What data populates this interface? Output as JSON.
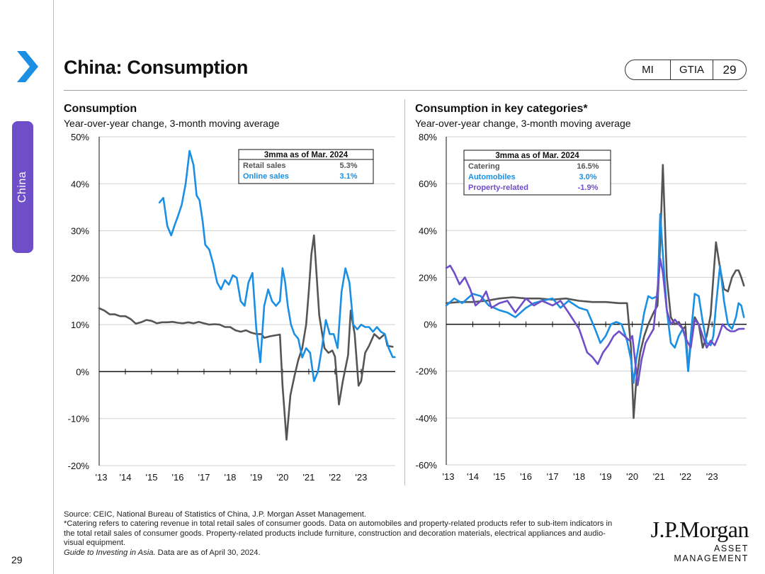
{
  "section_tab": "China",
  "page_number": "29",
  "title": "China: Consumption",
  "pill": {
    "mi": "MI",
    "gtia": "GTIA",
    "num": "29"
  },
  "colors": {
    "purple": "#6f4fc9",
    "blue": "#1a8fe3",
    "grey": "#555555",
    "accent_chevron": "#1a8fe3"
  },
  "footnotes": {
    "source": "Source: CEIC, National Bureau of Statistics of China, J.P. Morgan Asset Management.",
    "note": "*Catering refers to catering revenue in total retail sales of consumer goods. Data on automobiles and property-related products refer to sub-item indicators in the total retail sales of consumer goods. Property-related products include furniture, construction and decoration materials, electrical appliances and audio-visual equipment.",
    "guide_italic": "Guide to Investing in Asia.",
    "guide_rest": " Data are as of April 30, 2024."
  },
  "logo": {
    "main": "J.P.Morgan",
    "sub": "ASSET MANAGEMENT"
  },
  "chart_data": [
    {
      "type": "line",
      "title": "Consumption",
      "subtitle": "Year-over-year change, 3-month moving average",
      "ylim": [
        -20,
        50
      ],
      "yticks": [
        -20,
        -10,
        0,
        10,
        20,
        30,
        40,
        50
      ],
      "ytick_labels": [
        "-20%",
        "-10%",
        "0%",
        "10%",
        "20%",
        "30%",
        "40%",
        "50%"
      ],
      "xlim": [
        2013,
        2024.3
      ],
      "xticks": [
        2013,
        2014,
        2015,
        2016,
        2017,
        2018,
        2019,
        2020,
        2021,
        2022,
        2023
      ],
      "xtick_labels": [
        "'13",
        "'14",
        "'15",
        "'16",
        "'17",
        "'18",
        "'19",
        "'20",
        "'21",
        "'22",
        "'23"
      ],
      "legend": {
        "header": "3mma as of Mar. 2024",
        "rows": [
          {
            "label": "Retail sales",
            "value": "5.3%",
            "color": "#555555"
          },
          {
            "label": "Online sales",
            "value": "3.1%",
            "color": "#1a8fe3"
          }
        ]
      },
      "series": [
        {
          "name": "Retail sales",
          "color": "#555555",
          "x": [
            2013.0,
            2013.2,
            2013.4,
            2013.6,
            2013.8,
            2014.0,
            2014.2,
            2014.4,
            2014.6,
            2014.8,
            2015.0,
            2015.2,
            2015.4,
            2015.6,
            2015.8,
            2016.0,
            2016.2,
            2016.4,
            2016.6,
            2016.8,
            2017.0,
            2017.2,
            2017.4,
            2017.6,
            2017.8,
            2018.0,
            2018.2,
            2018.4,
            2018.6,
            2018.8,
            2019.0,
            2019.2,
            2019.3,
            2019.5,
            2019.7,
            2019.9,
            2020.0,
            2020.15,
            2020.3,
            2020.45,
            2020.6,
            2020.75,
            2020.9,
            2021.0,
            2021.1,
            2021.2,
            2021.4,
            2021.6,
            2021.75,
            2021.9,
            2022.0,
            2022.15,
            2022.3,
            2022.5,
            2022.6,
            2022.75,
            2022.9,
            2023.0,
            2023.15,
            2023.3,
            2023.5,
            2023.7,
            2023.9,
            2024.0,
            2024.2
          ],
          "y": [
            13.5,
            13.0,
            12.2,
            12.2,
            11.8,
            11.8,
            11.2,
            10.2,
            10.5,
            11.0,
            10.8,
            10.3,
            10.5,
            10.5,
            10.6,
            10.4,
            10.3,
            10.5,
            10.3,
            10.6,
            10.3,
            10.0,
            10.1,
            10.0,
            9.5,
            9.5,
            8.8,
            8.5,
            8.8,
            8.3,
            8.0,
            8.0,
            7.2,
            7.5,
            7.7,
            7.9,
            -3.0,
            -14.5,
            -5.0,
            -1.0,
            2.5,
            5.0,
            10.0,
            17.0,
            25.0,
            29.0,
            12.0,
            5.0,
            4.0,
            4.5,
            3.2,
            -7.0,
            -2.0,
            3.5,
            13.0,
            8.0,
            -3.0,
            -2.0,
            4.0,
            5.5,
            8.0,
            7.0,
            8.0,
            5.5,
            5.3
          ]
        },
        {
          "name": "Online sales",
          "color": "#1a8fe3",
          "x": [
            2015.3,
            2015.45,
            2015.6,
            2015.75,
            2015.9,
            2016.0,
            2016.15,
            2016.3,
            2016.45,
            2016.6,
            2016.72,
            2016.83,
            2016.95,
            2017.05,
            2017.2,
            2017.35,
            2017.5,
            2017.65,
            2017.8,
            2017.95,
            2018.1,
            2018.25,
            2018.4,
            2018.55,
            2018.7,
            2018.85,
            2019.0,
            2019.15,
            2019.3,
            2019.45,
            2019.6,
            2019.75,
            2019.9,
            2020.0,
            2020.1,
            2020.2,
            2020.32,
            2020.45,
            2020.6,
            2020.75,
            2020.9,
            2021.05,
            2021.2,
            2021.35,
            2021.5,
            2021.65,
            2021.8,
            2021.95,
            2022.1,
            2022.25,
            2022.4,
            2022.55,
            2022.7,
            2022.85,
            2023.0,
            2023.15,
            2023.3,
            2023.45,
            2023.6,
            2023.75,
            2023.9,
            2024.05,
            2024.2,
            2024.28
          ],
          "y": [
            36.0,
            37.0,
            31.0,
            29.0,
            31.5,
            33.0,
            35.5,
            40.0,
            47.0,
            44.0,
            37.5,
            36.5,
            32.0,
            27.0,
            26.0,
            23.0,
            19.0,
            17.5,
            19.5,
            18.5,
            20.5,
            20.0,
            15.0,
            14.0,
            19.0,
            21.0,
            9.0,
            2.0,
            14.0,
            17.5,
            15.0,
            14.0,
            15.0,
            22.0,
            19.0,
            14.0,
            10.0,
            8.0,
            7.0,
            3.0,
            5.0,
            4.0,
            -2.0,
            0.0,
            5.0,
            11.0,
            8.0,
            8.0,
            5.0,
            17.0,
            22.0,
            19.0,
            10.0,
            9.0,
            10.0,
            9.5,
            9.5,
            8.5,
            9.5,
            8.5,
            8.0,
            5.0,
            3.1,
            3.1
          ]
        }
      ]
    },
    {
      "type": "line",
      "title": "Consumption in key categories*",
      "subtitle": "Year-over-year change, 3-month moving average",
      "ylim": [
        -60,
        80
      ],
      "yticks": [
        -60,
        -40,
        -20,
        0,
        20,
        40,
        60,
        80
      ],
      "ytick_labels": [
        "-60%",
        "-40%",
        "-20%",
        "0%",
        "20%",
        "40%",
        "60%",
        "80%"
      ],
      "xlim": [
        2013,
        2024.3
      ],
      "xticks": [
        2013,
        2014,
        2015,
        2016,
        2017,
        2018,
        2019,
        2020,
        2021,
        2022,
        2023
      ],
      "xtick_labels": [
        "'13",
        "'14",
        "'15",
        "'16",
        "'17",
        "'18",
        "'19",
        "'20",
        "'21",
        "'22",
        "'23"
      ],
      "legend": {
        "header": "3mma as of Mar. 2024",
        "rows": [
          {
            "label": "Catering",
            "value": "16.5%",
            "color": "#555555"
          },
          {
            "label": "Automobiles",
            "value": "3.0%",
            "color": "#1a8fe3"
          },
          {
            "label": "Property-related",
            "value": "-1.9%",
            "color": "#6f4fc9"
          }
        ]
      },
      "series": [
        {
          "name": "Catering",
          "color": "#555555",
          "x": [
            2013.0,
            2013.5,
            2014.0,
            2014.5,
            2015.0,
            2015.5,
            2016.0,
            2016.5,
            2017.0,
            2017.5,
            2018.0,
            2018.5,
            2019.0,
            2019.5,
            2019.8,
            2019.95,
            2020.05,
            2020.15,
            2020.3,
            2020.45,
            2020.6,
            2020.8,
            2020.95,
            2021.05,
            2021.15,
            2021.3,
            2021.45,
            2021.6,
            2021.75,
            2021.9,
            2022.0,
            2022.1,
            2022.2,
            2022.35,
            2022.5,
            2022.65,
            2022.8,
            2022.95,
            2023.05,
            2023.15,
            2023.3,
            2023.45,
            2023.6,
            2023.75,
            2023.9,
            2024.0,
            2024.1,
            2024.2
          ],
          "y": [
            9,
            9.5,
            9.5,
            10,
            11,
            11.5,
            11,
            11,
            10.5,
            11,
            10,
            9.5,
            9.5,
            9,
            9,
            -10,
            -40,
            -24,
            -12,
            -5,
            0,
            5,
            8,
            35,
            68,
            20,
            3,
            0,
            1,
            -2,
            -1,
            -20,
            -8,
            3,
            0,
            -10,
            -5,
            4,
            20,
            35,
            24,
            15,
            14,
            20,
            23,
            23,
            20,
            16.5
          ]
        },
        {
          "name": "Automobiles",
          "color": "#1a8fe3",
          "x": [
            2013.0,
            2013.3,
            2013.6,
            2014.0,
            2014.3,
            2014.6,
            2015.0,
            2015.3,
            2015.6,
            2016.0,
            2016.3,
            2016.6,
            2017.0,
            2017.3,
            2017.6,
            2018.0,
            2018.3,
            2018.6,
            2018.8,
            2019.0,
            2019.2,
            2019.4,
            2019.6,
            2019.8,
            2019.95,
            2020.05,
            2020.15,
            2020.3,
            2020.45,
            2020.6,
            2020.75,
            2020.95,
            2021.05,
            2021.15,
            2021.3,
            2021.45,
            2021.6,
            2021.75,
            2021.9,
            2022.0,
            2022.1,
            2022.2,
            2022.35,
            2022.5,
            2022.65,
            2022.8,
            2022.95,
            2023.05,
            2023.15,
            2023.3,
            2023.45,
            2023.6,
            2023.75,
            2023.9,
            2024.0,
            2024.1,
            2024.2
          ],
          "y": [
            8,
            11,
            9,
            13,
            12,
            8,
            6,
            5,
            3,
            7,
            9,
            10,
            11,
            7,
            10,
            7,
            6,
            -2,
            -8,
            -5,
            0,
            1,
            0,
            -7,
            -15,
            -25,
            -15,
            -5,
            5,
            12,
            11,
            12,
            47,
            30,
            6,
            -8,
            -10,
            -5,
            -2,
            -6,
            -20,
            -5,
            13,
            12,
            1,
            -8,
            -9,
            -5,
            8,
            25,
            10,
            0,
            -2,
            3,
            9,
            8,
            3.0
          ]
        },
        {
          "name": "Property-related",
          "color": "#6f4fc9",
          "x": [
            2013.0,
            2013.15,
            2013.3,
            2013.5,
            2013.7,
            2013.9,
            2014.1,
            2014.3,
            2014.5,
            2014.7,
            2015.0,
            2015.3,
            2015.6,
            2016.0,
            2016.3,
            2016.6,
            2017.0,
            2017.3,
            2017.6,
            2018.0,
            2018.3,
            2018.5,
            2018.7,
            2018.9,
            2019.1,
            2019.3,
            2019.5,
            2019.7,
            2019.9,
            2020.0,
            2020.1,
            2020.2,
            2020.35,
            2020.5,
            2020.65,
            2020.8,
            2020.95,
            2021.05,
            2021.15,
            2021.3,
            2021.45,
            2021.6,
            2021.75,
            2021.9,
            2022.05,
            2022.2,
            2022.35,
            2022.5,
            2022.65,
            2022.8,
            2022.95,
            2023.1,
            2023.25,
            2023.4,
            2023.55,
            2023.7,
            2023.85,
            2024.0,
            2024.2
          ],
          "y": [
            24,
            25,
            22,
            17,
            20,
            15,
            8,
            10,
            14,
            7,
            9,
            10,
            5,
            11,
            8,
            10,
            8,
            10,
            5,
            -2,
            -12,
            -14,
            -17,
            -12,
            -9,
            -5,
            -3,
            -5,
            -7,
            -5,
            -15,
            -26,
            -15,
            -8,
            -5,
            -2,
            15,
            28,
            22,
            6,
            0,
            2,
            0,
            -2,
            -7,
            -10,
            2,
            0,
            -5,
            -10,
            -7,
            -9,
            -5,
            0,
            -2,
            -3,
            -3,
            -2,
            -1.9
          ]
        }
      ]
    }
  ]
}
